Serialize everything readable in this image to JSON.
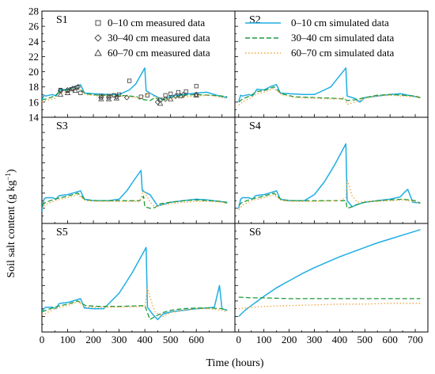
{
  "figure": {
    "ylabel_parts": [
      "Soil salt content (g kg",
      "−1",
      ")"
    ],
    "xlabel": "Time (hours)",
    "colors": {
      "sim_0_10": "#1eaee3",
      "sim_30_40": "#1f9a3a",
      "sim_60_70": "#f0a23a",
      "measured": "#3a3a3a"
    },
    "legend_measured": [
      {
        "symbol": "square",
        "label": "0–10 cm measured data"
      },
      {
        "symbol": "diamond",
        "label": "30–40 cm measured data"
      },
      {
        "symbol": "triangle",
        "label": "60–70 cm measured data"
      }
    ],
    "legend_simulated": [
      {
        "style": "solid",
        "label": "0–10 cm simulated data"
      },
      {
        "style": "dashed",
        "label": "30–40 cm simulated data"
      },
      {
        "style": "dotted",
        "label": "60–70 cm simulated data"
      }
    ]
  },
  "chart_data": [
    {
      "type": "line",
      "panel": "S1",
      "xlabel": "Time (hours)",
      "ylabel": "Soil salt content (g kg−1)",
      "xlim": [
        0,
        750
      ],
      "ylim": [
        14,
        28
      ],
      "yticks": [
        14,
        16,
        18,
        20,
        22,
        24,
        26,
        28
      ],
      "series": [
        {
          "depth": "0-10",
          "x": [
            0,
            8,
            15,
            40,
            55,
            65,
            72,
            100,
            130,
            150,
            165,
            200,
            260,
            300,
            340,
            365,
            400,
            405,
            430,
            470,
            500,
            550,
            600,
            640,
            690,
            720
          ],
          "y": [
            16.2,
            16.9,
            16.8,
            17.0,
            16.8,
            17.3,
            17.7,
            17.6,
            18.1,
            18.3,
            17.2,
            17.1,
            17.0,
            17.0,
            17.6,
            18.4,
            20.5,
            17.5,
            17.0,
            16.3,
            16.8,
            17.0,
            17.2,
            17.3,
            16.8,
            16.6
          ]
        },
        {
          "depth": "30-40",
          "x": [
            0,
            15,
            50,
            72,
            100,
            140,
            170,
            220,
            300,
            340,
            370,
            380,
            420,
            440,
            460,
            500,
            550,
            600,
            650,
            700,
            720
          ],
          "y": [
            16.3,
            16.4,
            16.8,
            17.5,
            17.6,
            17.9,
            17.1,
            16.9,
            16.9,
            16.8,
            16.7,
            16.4,
            16.2,
            16.6,
            16.2,
            16.6,
            16.9,
            17.0,
            16.9,
            16.8,
            16.7
          ]
        },
        {
          "depth": "60-70",
          "x": [
            0,
            15,
            50,
            72,
            100,
            140,
            170,
            220,
            300,
            340,
            370,
            380,
            420,
            440,
            460,
            500,
            550,
            600,
            650,
            700,
            720
          ],
          "y": [
            16.0,
            16.2,
            16.5,
            17.2,
            17.4,
            17.8,
            17.0,
            16.8,
            16.8,
            16.7,
            16.6,
            16.5,
            17.3,
            16.6,
            16.5,
            16.4,
            16.7,
            16.8,
            16.9,
            16.6,
            16.5
          ]
        }
      ],
      "measured": [
        {
          "depth": "0-10",
          "marker": "square",
          "x": [
            72,
            100,
            115,
            135,
            150,
            230,
            260,
            280,
            300,
            340,
            385,
            410,
            460,
            480,
            500,
            530,
            560,
            600
          ],
          "y": [
            17.6,
            17.5,
            17.7,
            17.9,
            17.2,
            16.8,
            16.8,
            16.9,
            17.0,
            18.8,
            16.7,
            16.9,
            16.3,
            16.9,
            17.1,
            17.3,
            17.4,
            18.1
          ]
        },
        {
          "depth": "30-40",
          "marker": "diamond",
          "x": [
            72,
            100,
            120,
            140,
            230,
            260,
            290,
            330,
            450,
            480,
            520,
            550,
            600
          ],
          "y": [
            17.5,
            17.6,
            17.8,
            18.0,
            16.6,
            16.6,
            16.7,
            16.6,
            16.0,
            16.4,
            16.8,
            17.0,
            17.0
          ]
        },
        {
          "depth": "60-70",
          "marker": "triangle",
          "x": [
            72,
            100,
            130,
            230,
            260,
            290,
            460,
            500,
            540,
            600
          ],
          "y": [
            17.0,
            17.2,
            17.5,
            16.4,
            16.4,
            16.5,
            15.8,
            16.4,
            16.8,
            16.9
          ]
        }
      ]
    },
    {
      "type": "line",
      "panel": "S2",
      "xlabel": "Time (hours)",
      "ylabel": "Soil salt content (g kg−1)",
      "xlim": [
        -15,
        750
      ],
      "ylim": [
        14,
        28
      ],
      "series": [
        {
          "depth": "0-10",
          "x": [
            0,
            8,
            15,
            40,
            55,
            65,
            72,
            100,
            130,
            150,
            165,
            200,
            260,
            300,
            340,
            365,
            425,
            430,
            460,
            480,
            500,
            550,
            600,
            640,
            690,
            720
          ],
          "y": [
            16.1,
            16.9,
            16.8,
            17.0,
            16.8,
            17.3,
            17.7,
            17.6,
            18.1,
            18.3,
            17.2,
            17.1,
            17.0,
            17.0,
            17.6,
            18.0,
            20.5,
            16.8,
            16.5,
            16.0,
            16.6,
            16.8,
            17.0,
            17.1,
            16.8,
            16.6
          ]
        },
        {
          "depth": "30-40",
          "x": [
            0,
            15,
            50,
            72,
            100,
            140,
            170,
            220,
            300,
            380,
            420,
            430,
            460,
            500,
            550,
            600,
            650,
            700,
            720
          ],
          "y": [
            16.0,
            16.4,
            16.9,
            17.4,
            17.5,
            18.0,
            17.1,
            16.7,
            16.6,
            16.5,
            16.4,
            16.2,
            16.3,
            16.6,
            16.9,
            17.0,
            16.9,
            16.8,
            16.6
          ]
        },
        {
          "depth": "60-70",
          "x": [
            0,
            15,
            50,
            72,
            100,
            140,
            170,
            220,
            300,
            380,
            420,
            430,
            460,
            500,
            550,
            600,
            650,
            700,
            720
          ],
          "y": [
            15.6,
            16.0,
            16.6,
            17.1,
            17.3,
            17.8,
            17.0,
            16.6,
            16.5,
            16.4,
            16.6,
            15.7,
            16.0,
            16.5,
            16.8,
            16.9,
            16.8,
            16.7,
            16.5
          ]
        }
      ]
    },
    {
      "type": "line",
      "panel": "S3",
      "xlabel": "Time (hours)",
      "ylabel": "Soil salt content (g kg−1)",
      "xlim": [
        0,
        750
      ],
      "ylim": [
        14,
        28
      ],
      "series": [
        {
          "depth": "0-10",
          "x": [
            0,
            8,
            15,
            40,
            55,
            65,
            72,
            100,
            130,
            150,
            165,
            200,
            260,
            300,
            330,
            360,
            385,
            390,
            420,
            450,
            470,
            500,
            550,
            600,
            640,
            690,
            720
          ],
          "y": [
            15.6,
            17.2,
            17.4,
            17.4,
            17.2,
            17.6,
            17.7,
            17.8,
            18.1,
            18.3,
            17.2,
            17.0,
            17.0,
            17.2,
            18.3,
            19.8,
            21.0,
            18.3,
            17.8,
            16.3,
            16.5,
            16.8,
            17.0,
            17.2,
            17.1,
            16.9,
            16.8
          ]
        },
        {
          "depth": "30-40",
          "x": [
            0,
            15,
            50,
            72,
            100,
            140,
            170,
            220,
            300,
            380,
            395,
            400,
            420,
            440,
            460,
            500,
            550,
            600,
            650,
            700,
            720
          ],
          "y": [
            16.4,
            16.8,
            17.2,
            17.4,
            17.6,
            18.0,
            17.1,
            17.0,
            17.0,
            17.0,
            17.6,
            16.2,
            16.0,
            16.1,
            16.6,
            16.8,
            17.0,
            17.1,
            17.0,
            16.9,
            16.7
          ]
        },
        {
          "depth": "60-70",
          "x": [
            0,
            15,
            50,
            72,
            100,
            140,
            170,
            220,
            300,
            380,
            395,
            410,
            420,
            440,
            460,
            500,
            550,
            600,
            650,
            700,
            720
          ],
          "y": [
            16.0,
            16.5,
            17.0,
            17.2,
            17.4,
            17.8,
            17.0,
            16.9,
            16.9,
            16.9,
            18.4,
            17.5,
            16.8,
            16.2,
            16.4,
            16.6,
            16.8,
            16.9,
            16.9,
            16.8,
            16.6
          ]
        }
      ]
    },
    {
      "type": "line",
      "panel": "S4",
      "xlabel": "Time (hours)",
      "ylabel": "Soil salt content (g kg−1)",
      "xlim": [
        -15,
        750
      ],
      "ylim": [
        14,
        28
      ],
      "series": [
        {
          "depth": "0-10",
          "x": [
            0,
            8,
            15,
            40,
            55,
            65,
            72,
            100,
            130,
            150,
            165,
            200,
            260,
            300,
            340,
            380,
            425,
            430,
            450,
            470,
            500,
            550,
            600,
            640,
            660,
            670,
            690,
            720
          ],
          "y": [
            16.0,
            17.2,
            17.4,
            17.4,
            17.2,
            17.6,
            17.7,
            17.8,
            18.1,
            18.3,
            17.2,
            17.0,
            17.0,
            17.8,
            19.5,
            21.7,
            24.5,
            17.0,
            16.2,
            16.5,
            16.8,
            17.0,
            17.2,
            17.5,
            18.2,
            18.5,
            16.8,
            16.7
          ]
        },
        {
          "depth": "30-40",
          "x": [
            0,
            15,
            50,
            72,
            100,
            140,
            170,
            220,
            300,
            400,
            425,
            430,
            450,
            470,
            500,
            550,
            600,
            650,
            700,
            720
          ],
          "y": [
            16.4,
            16.8,
            17.2,
            17.4,
            17.6,
            18.0,
            17.1,
            17.0,
            17.0,
            17.0,
            17.0,
            16.0,
            16.2,
            16.5,
            16.8,
            17.0,
            17.1,
            17.2,
            17.0,
            16.7
          ]
        },
        {
          "depth": "60-70",
          "x": [
            0,
            15,
            50,
            72,
            100,
            140,
            170,
            220,
            300,
            400,
            425,
            430,
            450,
            470,
            500,
            550,
            600,
            650,
            700,
            720
          ],
          "y": [
            15.8,
            16.4,
            17.0,
            17.2,
            17.4,
            17.8,
            17.0,
            16.9,
            16.9,
            17.0,
            17.4,
            19.8,
            17.6,
            16.8,
            16.9,
            16.9,
            17.0,
            17.1,
            16.9,
            16.6
          ]
        }
      ]
    },
    {
      "type": "line",
      "panel": "S5",
      "xlabel": "Time (hours)",
      "ylabel": "Soil salt content (g kg−1)",
      "xlim": [
        0,
        750
      ],
      "ylim": [
        14,
        28
      ],
      "xticks": [
        0,
        100,
        200,
        300,
        400,
        500,
        600
      ],
      "series": [
        {
          "depth": "0-10",
          "x": [
            0,
            8,
            15,
            40,
            55,
            65,
            72,
            100,
            130,
            150,
            165,
            200,
            240,
            300,
            350,
            405,
            410,
            430,
            450,
            470,
            500,
            550,
            600,
            640,
            670,
            690,
            700,
            710,
            720
          ],
          "y": [
            16.6,
            17.0,
            17.2,
            17.2,
            17.0,
            17.6,
            17.7,
            17.8,
            18.1,
            18.3,
            17.1,
            17.0,
            17.0,
            19.0,
            21.6,
            24.9,
            17.2,
            16.3,
            15.6,
            16.3,
            16.6,
            16.8,
            17.0,
            17.1,
            17.2,
            20.0,
            17.0,
            16.9,
            16.8
          ]
        },
        {
          "depth": "30-40",
          "x": [
            0,
            15,
            50,
            72,
            100,
            140,
            170,
            220,
            300,
            400,
            410,
            420,
            440,
            470,
            500,
            550,
            600,
            650,
            700,
            720
          ],
          "y": [
            16.6,
            16.8,
            17.2,
            17.4,
            17.6,
            18.0,
            17.4,
            17.3,
            17.3,
            17.4,
            16.5,
            15.6,
            16.0,
            16.5,
            16.8,
            17.0,
            17.1,
            17.1,
            17.0,
            16.8
          ]
        },
        {
          "depth": "60-70",
          "x": [
            0,
            15,
            50,
            72,
            100,
            140,
            170,
            220,
            300,
            400,
            410,
            420,
            440,
            470,
            500,
            550,
            600,
            650,
            700,
            720
          ],
          "y": [
            16.2,
            16.4,
            17.0,
            17.2,
            17.4,
            17.9,
            17.2,
            17.2,
            17.2,
            17.3,
            19.8,
            18.5,
            16.6,
            16.0,
            16.5,
            16.8,
            17.0,
            17.0,
            16.8,
            16.6
          ]
        }
      ]
    },
    {
      "type": "line",
      "panel": "S6",
      "xlabel": "Time (hours)",
      "ylabel": "Soil salt content (g kg−1)",
      "xlim": [
        -15,
        750
      ],
      "ylim": [
        14,
        28
      ],
      "xticks": [
        0,
        100,
        200,
        300,
        400,
        500,
        600,
        700
      ],
      "series": [
        {
          "depth": "0-10",
          "x": [
            0,
            25,
            50,
            100,
            150,
            200,
            250,
            300,
            350,
            400,
            450,
            500,
            550,
            600,
            650,
            700,
            720
          ],
          "y": [
            16.0,
            16.8,
            17.4,
            18.6,
            19.7,
            20.6,
            21.5,
            22.3,
            23.0,
            23.7,
            24.3,
            24.9,
            25.5,
            26.0,
            26.5,
            27.0,
            27.2
          ]
        },
        {
          "depth": "30-40",
          "x": [
            0,
            50,
            100,
            200,
            300,
            400,
            500,
            600,
            700,
            720
          ],
          "y": [
            18.5,
            18.4,
            18.4,
            18.3,
            18.3,
            18.3,
            18.3,
            18.3,
            18.3,
            18.3
          ]
        },
        {
          "depth": "60-70",
          "x": [
            0,
            50,
            100,
            200,
            300,
            400,
            500,
            600,
            700,
            720
          ],
          "y": [
            17.0,
            17.2,
            17.3,
            17.4,
            17.5,
            17.6,
            17.6,
            17.7,
            17.7,
            17.7
          ]
        }
      ]
    }
  ]
}
